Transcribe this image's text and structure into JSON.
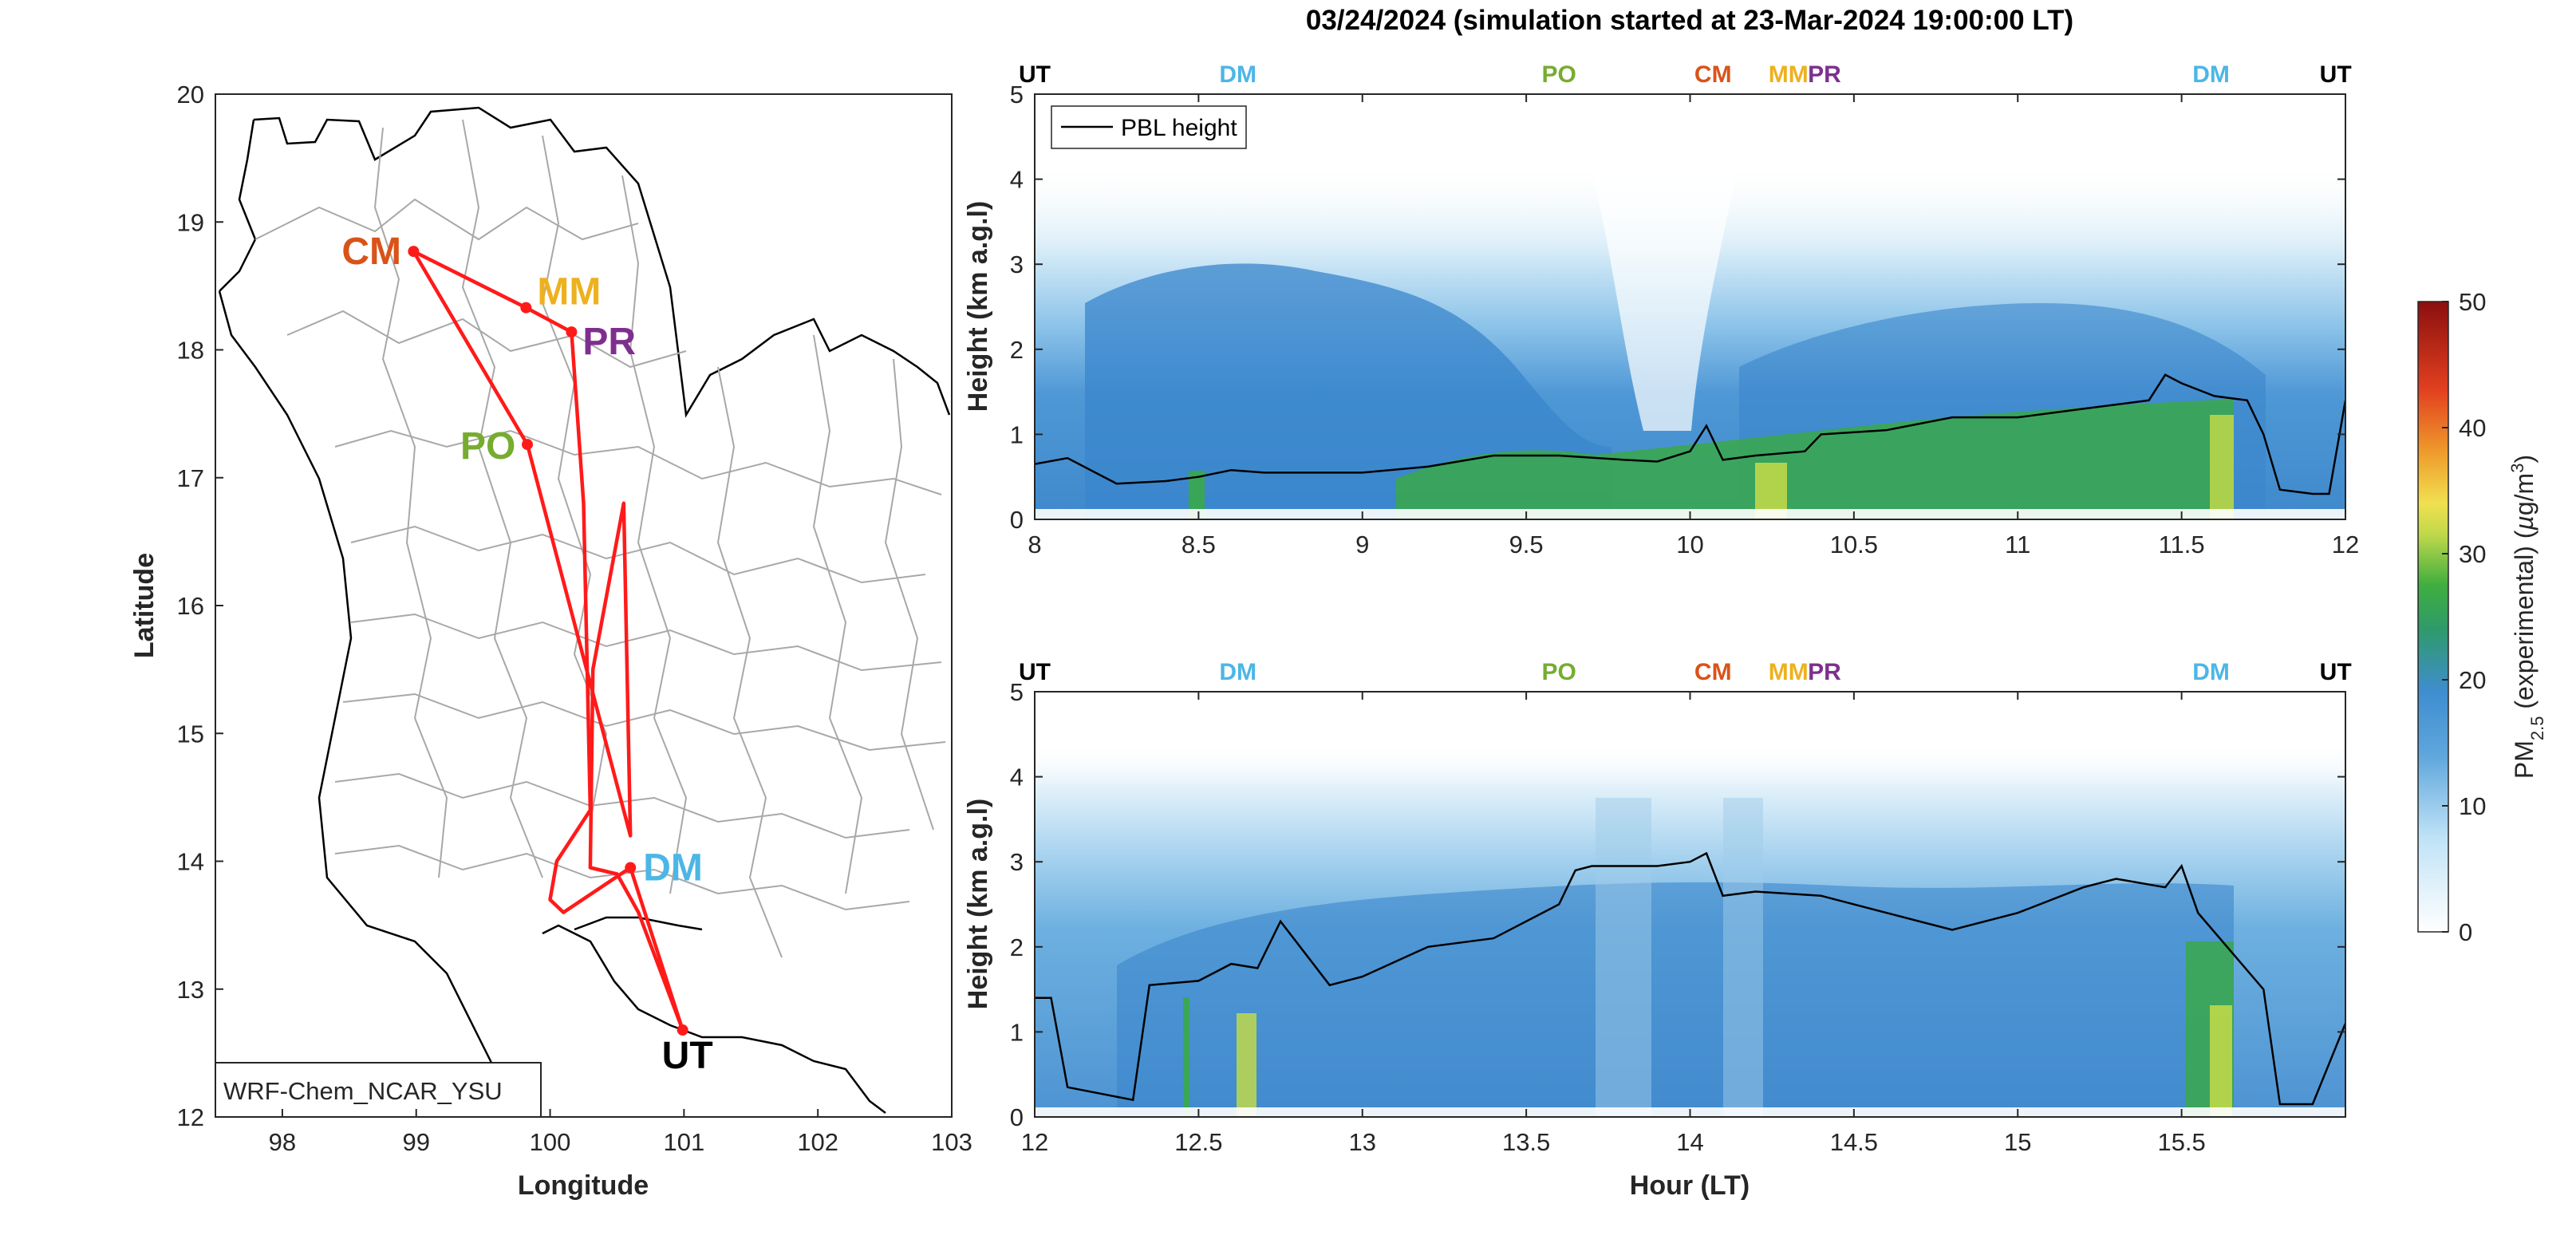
{
  "title": "03/24/2024 (simulation started at 23-Mar-2024 19:00:00 LT)",
  "colors": {
    "UT": "#000000",
    "DM": "#4cb6e6",
    "PO": "#77ac30",
    "CM": "#d95319",
    "MM": "#edb120",
    "PR": "#7e2f8e",
    "route": "#ff1a1a",
    "pbl": "#000000"
  },
  "map": {
    "xlabel": "Longitude",
    "ylabel": "Latitude",
    "xticks": [
      "98",
      "99",
      "100",
      "101",
      "102",
      "103"
    ],
    "yticks": [
      "12",
      "13",
      "14",
      "15",
      "16",
      "17",
      "18",
      "19",
      "20"
    ],
    "model_label": "WRF-Chem_NCAR_YSU",
    "sites": [
      {
        "code": "CM",
        "lon": 98.98,
        "lat": 18.77
      },
      {
        "code": "MM",
        "lon": 99.82,
        "lat": 18.33
      },
      {
        "code": "PR",
        "lon": 100.16,
        "lat": 18.14
      },
      {
        "code": "PO",
        "lon": 99.83,
        "lat": 17.26
      },
      {
        "code": "DM",
        "lon": 100.6,
        "lat": 13.95
      },
      {
        "code": "UT",
        "lon": 100.99,
        "lat": 12.68
      }
    ]
  },
  "profiles": {
    "ylabel": "Height (km a.g.l)",
    "xlabel": "Hour (LT)",
    "legend": "PBL height",
    "yticks": [
      "0",
      "1",
      "2",
      "3",
      "4",
      "5"
    ],
    "panel1": {
      "xticks": [
        "8",
        "8.5",
        "9",
        "9.5",
        "10",
        "10.5",
        "11",
        "11.5",
        "12"
      ],
      "site_labels": [
        {
          "text": "UT",
          "hour": 8.0
        },
        {
          "text": "DM",
          "hour": 8.62
        },
        {
          "text": "PO",
          "hour": 9.6
        },
        {
          "text": "CM",
          "hour": 10.07
        },
        {
          "text": "MM",
          "hour": 10.3
        },
        {
          "text": "PR",
          "hour": 10.41
        },
        {
          "text": "DM",
          "hour": 11.59
        },
        {
          "text": "UT",
          "hour": 11.97
        }
      ]
    },
    "panel2": {
      "xticks": [
        "12",
        "12.5",
        "13",
        "13.5",
        "14",
        "14.5",
        "15",
        "15.5"
      ],
      "site_labels": [
        {
          "text": "UT",
          "hour": 12.0
        },
        {
          "text": "DM",
          "hour": 12.62
        },
        {
          "text": "PO",
          "hour": 13.6
        },
        {
          "text": "CM",
          "hour": 14.07
        },
        {
          "text": "MM",
          "hour": 14.3
        },
        {
          "text": "PR",
          "hour": 14.41
        },
        {
          "text": "DM",
          "hour": 15.59
        },
        {
          "text": "UT",
          "hour": 15.97
        }
      ]
    }
  },
  "colorbar": {
    "label": "PM2.5 (experimental) (µg/m3)",
    "ticks": [
      "0",
      "10",
      "20",
      "30",
      "40",
      "50"
    ],
    "colors": [
      "#ffffff",
      "#9fd3f0",
      "#3d8ed0",
      "#3aa84a",
      "#e9e04d",
      "#e8822a",
      "#d62020",
      "#8b0f0f"
    ]
  },
  "chart_data": [
    {
      "type": "line",
      "title": "",
      "xlabel": "Longitude",
      "ylabel": "Latitude",
      "xlim": [
        97.5,
        103
      ],
      "ylim": [
        12,
        20
      ],
      "series": [
        {
          "name": "",
          "x": [
            98.98,
            99.82,
            100.16,
            100.25,
            100.3,
            100.05,
            100.0,
            100.1,
            100.6,
            100.99,
            100.66,
            100.5,
            100.3,
            100.32,
            100.55,
            100.6,
            99.83,
            98.98
          ],
          "y": [
            18.77,
            18.33,
            18.14,
            16.8,
            14.4,
            14.0,
            13.7,
            13.6,
            13.95,
            12.68,
            13.6,
            13.9,
            13.95,
            15.5,
            16.8,
            14.2,
            17.26,
            18.77
          ]
        }
      ]
    },
    {
      "type": "heatmap",
      "title": "",
      "xlabel": "",
      "ylabel": "Height (km a.g.l)",
      "xlim": [
        8,
        12
      ],
      "ylim": [
        0,
        5
      ],
      "series": [
        {
          "name": "PBL height",
          "x": [
            8.0,
            8.1,
            8.25,
            8.4,
            8.5,
            8.6,
            8.7,
            8.8,
            9.0,
            9.2,
            9.4,
            9.6,
            9.8,
            9.9,
            10.0,
            10.05,
            10.1,
            10.2,
            10.35,
            10.4,
            10.6,
            10.8,
            11.0,
            11.2,
            11.4,
            11.45,
            11.5,
            11.6,
            11.7,
            11.75,
            11.8,
            11.9,
            11.95,
            12.0
          ],
          "y": [
            0.65,
            0.72,
            0.42,
            0.45,
            0.5,
            0.58,
            0.55,
            0.55,
            0.55,
            0.62,
            0.75,
            0.75,
            0.7,
            0.68,
            0.8,
            1.1,
            0.7,
            0.75,
            0.8,
            1.0,
            1.05,
            1.2,
            1.2,
            1.3,
            1.4,
            1.7,
            1.6,
            1.45,
            1.4,
            1.0,
            0.35,
            0.3,
            0.3,
            1.4
          ]
        }
      ]
    },
    {
      "type": "heatmap",
      "title": "",
      "xlabel": "Hour (LT)",
      "ylabel": "Height (km a.g.l)",
      "xlim": [
        12,
        16
      ],
      "ylim": [
        0,
        5
      ],
      "series": [
        {
          "name": "PBL height",
          "x": [
            12.0,
            12.05,
            12.1,
            12.3,
            12.35,
            12.5,
            12.6,
            12.68,
            12.75,
            12.9,
            13.0,
            13.2,
            13.4,
            13.6,
            13.65,
            13.7,
            13.9,
            14.0,
            14.05,
            14.1,
            14.2,
            14.4,
            14.6,
            14.8,
            15.0,
            15.2,
            15.3,
            15.45,
            15.5,
            15.55,
            15.75,
            15.8,
            15.9,
            16.0
          ],
          "y": [
            1.4,
            1.4,
            0.35,
            0.2,
            1.55,
            1.6,
            1.8,
            1.75,
            2.3,
            1.55,
            1.65,
            2.0,
            2.1,
            2.5,
            2.9,
            2.95,
            2.95,
            3.0,
            3.1,
            2.6,
            2.65,
            2.6,
            2.4,
            2.2,
            2.4,
            2.7,
            2.8,
            2.7,
            2.95,
            2.4,
            1.5,
            0.15,
            0.15,
            1.1
          ]
        }
      ]
    }
  ]
}
